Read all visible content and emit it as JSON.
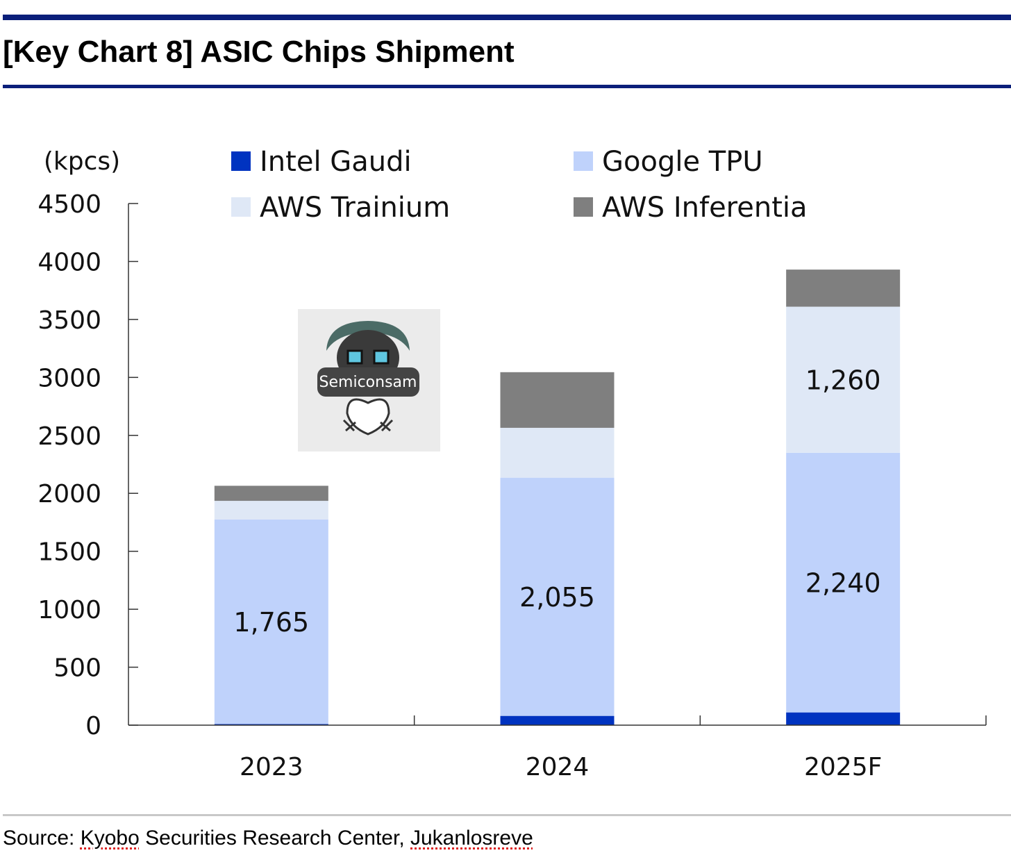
{
  "header": {
    "title": "[Key Chart 8] ASIC Chips Shipment"
  },
  "watermark": {
    "label": "Semiconsam"
  },
  "source": {
    "prefix": "Source: ",
    "org": "Kyobo",
    "middle": " Securities Research Center, ",
    "author": "Jukanlosreve"
  },
  "chart_data": {
    "type": "bar",
    "stacked": true,
    "unit_label": "(kpcs)",
    "categories": [
      "2023",
      "2024",
      "2025F"
    ],
    "ylim": [
      0,
      4500
    ],
    "yticks": [
      0,
      500,
      1000,
      1500,
      2000,
      2500,
      3000,
      3500,
      4000,
      4500
    ],
    "grid": false,
    "legend_position": "top",
    "series": [
      {
        "name": "Intel Gaudi",
        "color": "#0033c0",
        "values": [
          10,
          80,
          110
        ]
      },
      {
        "name": "Google TPU",
        "color": "#bfd2fb",
        "values": [
          1765,
          2055,
          2240
        ]
      },
      {
        "name": "AWS Trainium",
        "color": "#dfe8f6",
        "values": [
          160,
          430,
          1260
        ]
      },
      {
        "name": "AWS Inferentia",
        "color": "#7f7f7f",
        "values": [
          130,
          480,
          320
        ]
      }
    ],
    "data_labels": [
      {
        "series": "Google TPU",
        "category": "2023",
        "text": "1,765"
      },
      {
        "series": "Google TPU",
        "category": "2024",
        "text": "2,055"
      },
      {
        "series": "Google TPU",
        "category": "2025F",
        "text": "2,240"
      },
      {
        "series": "AWS Trainium",
        "category": "2025F",
        "text": "1,260"
      }
    ]
  }
}
